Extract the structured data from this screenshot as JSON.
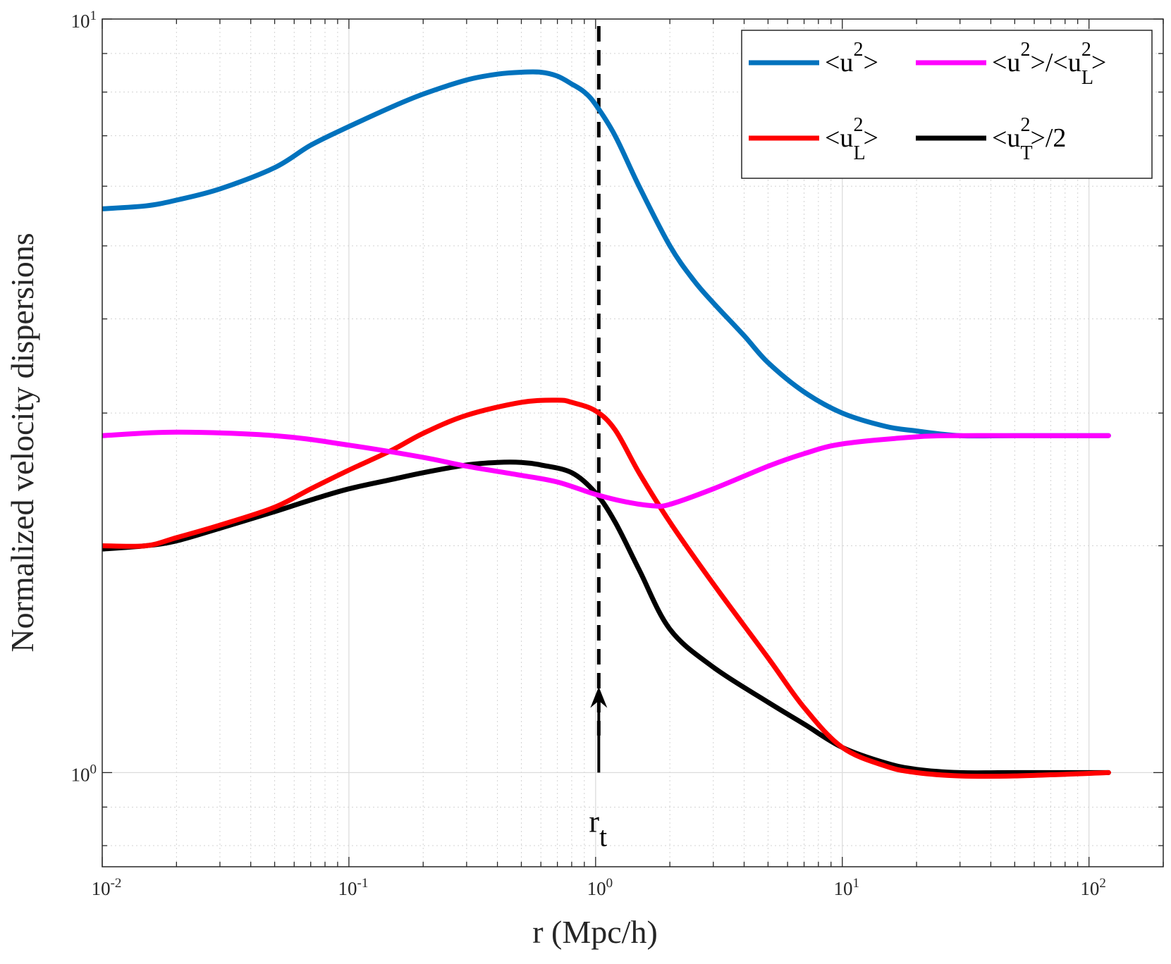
{
  "chart_data": {
    "type": "line",
    "xlabel": "r (Mpc/h)",
    "ylabel": "Normalized velocity dispersions",
    "xscale": "log",
    "yscale": "log",
    "xlim": [
      0.01,
      200
    ],
    "ylim": [
      0.75,
      10
    ],
    "grid": true,
    "xticks": [
      {
        "base": "10",
        "exp": "-2",
        "value": 0.01
      },
      {
        "base": "10",
        "exp": "-1",
        "value": 0.1
      },
      {
        "base": "10",
        "exp": "0",
        "value": 1
      },
      {
        "base": "10",
        "exp": "1",
        "value": 10
      },
      {
        "base": "10",
        "exp": "2",
        "value": 100
      }
    ],
    "yticks": [
      {
        "base": "10",
        "exp": "0",
        "value": 1
      },
      {
        "base": "10",
        "exp": "1",
        "value": 10
      }
    ],
    "legend_position": "top-right",
    "legend": [
      {
        "parts": [
          "<u",
          "^2",
          ">"
        ],
        "color": "#0072BD"
      },
      {
        "parts": [
          "<u",
          "^2",
          ">/<u",
          "_L",
          "^2",
          ">"
        ],
        "color": "#FF00FF"
      },
      {
        "parts": [
          "<u",
          "_L",
          "^2",
          ">"
        ],
        "color": "#FF0000"
      },
      {
        "parts": [
          "<u",
          "_T",
          "^2",
          ">/2"
        ],
        "color": "#000000"
      }
    ],
    "series": [
      {
        "color": "#0072BD",
        "x": [
          0.01,
          0.015,
          0.02,
          0.03,
          0.05,
          0.07,
          0.1,
          0.15,
          0.2,
          0.3,
          0.4,
          0.5,
          0.6,
          0.7,
          0.8,
          0.9,
          1.0,
          1.2,
          1.5,
          2.0,
          2.5,
          3.0,
          4.0,
          5.0,
          7.0,
          10,
          15,
          20,
          30,
          50,
          120
        ],
        "y": [
          5.6,
          5.65,
          5.75,
          5.95,
          6.35,
          6.8,
          7.2,
          7.65,
          7.95,
          8.3,
          8.45,
          8.5,
          8.5,
          8.4,
          8.2,
          8.0,
          7.7,
          7.0,
          6.0,
          5.0,
          4.5,
          4.2,
          3.8,
          3.5,
          3.2,
          3.0,
          2.88,
          2.84,
          2.8,
          2.8,
          2.8
        ]
      },
      {
        "color": "#FF00FF",
        "x": [
          0.01,
          0.02,
          0.05,
          0.1,
          0.2,
          0.3,
          0.5,
          0.7,
          1.0,
          1.3,
          1.7,
          2.0,
          3.0,
          5.0,
          7.0,
          10,
          20,
          30,
          50,
          120
        ],
        "y": [
          2.8,
          2.83,
          2.8,
          2.72,
          2.62,
          2.55,
          2.48,
          2.43,
          2.34,
          2.29,
          2.26,
          2.27,
          2.38,
          2.55,
          2.65,
          2.73,
          2.79,
          2.8,
          2.8,
          2.8
        ]
      },
      {
        "color": "#FF0000",
        "x": [
          0.01,
          0.015,
          0.02,
          0.03,
          0.05,
          0.07,
          0.1,
          0.15,
          0.2,
          0.3,
          0.5,
          0.7,
          0.8,
          1.0,
          1.2,
          1.5,
          2.0,
          3.0,
          5.0,
          7.0,
          10,
          15,
          20,
          30,
          50,
          120
        ],
        "y": [
          2.0,
          2.0,
          2.05,
          2.13,
          2.25,
          2.38,
          2.52,
          2.68,
          2.82,
          2.98,
          3.1,
          3.12,
          3.1,
          3.02,
          2.85,
          2.5,
          2.15,
          1.78,
          1.42,
          1.22,
          1.08,
          1.02,
          1.0,
          0.99,
          0.99,
          1.0
        ]
      },
      {
        "color": "#000000",
        "x": [
          0.01,
          0.015,
          0.02,
          0.03,
          0.05,
          0.07,
          0.1,
          0.15,
          0.2,
          0.3,
          0.4,
          0.5,
          0.6,
          0.8,
          1.0,
          1.2,
          1.5,
          2.0,
          3.0,
          5.0,
          7.0,
          10,
          15,
          20,
          30,
          50,
          120
        ],
        "y": [
          1.98,
          2.0,
          2.03,
          2.11,
          2.22,
          2.3,
          2.38,
          2.45,
          2.5,
          2.56,
          2.58,
          2.58,
          2.56,
          2.5,
          2.35,
          2.15,
          1.86,
          1.55,
          1.38,
          1.24,
          1.16,
          1.08,
          1.03,
          1.01,
          1.0,
          1.0,
          1.0
        ]
      }
    ],
    "annotations": [
      {
        "type": "vline",
        "x": 1.03,
        "style": "dashed",
        "color": "#000000"
      },
      {
        "type": "arrow",
        "x": 1.03,
        "y_from": 1.0,
        "y_to": 1.3,
        "color": "#000000"
      },
      {
        "type": "label",
        "parts": [
          "r",
          "_t"
        ],
        "x": 1.03,
        "y": 0.86
      }
    ]
  }
}
